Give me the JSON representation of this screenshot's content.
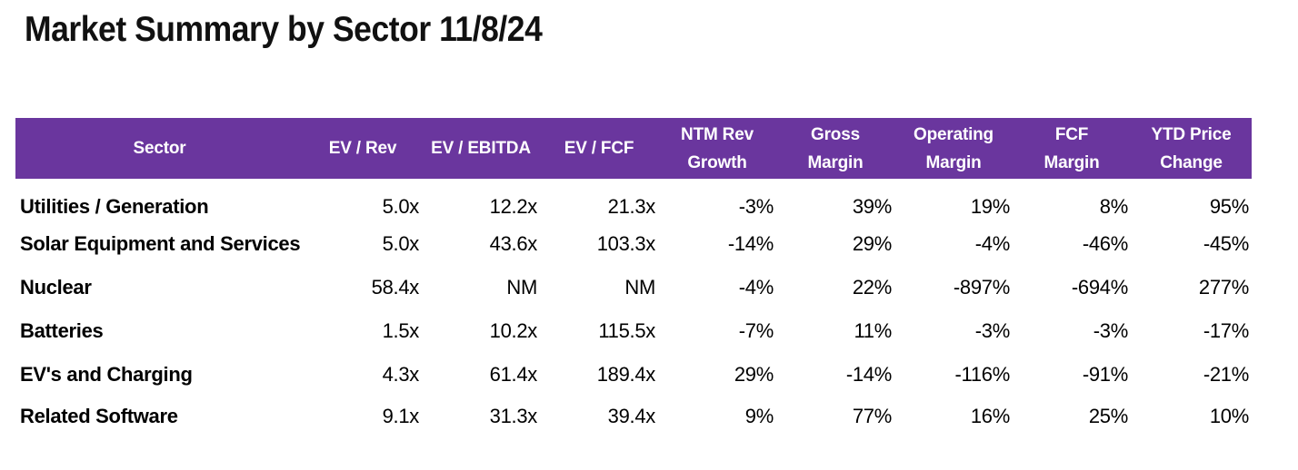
{
  "colors": {
    "header_bg": "#6A369E",
    "header_text": "#FFFFFF",
    "body_text": "#000000"
  },
  "chart_data": {
    "type": "table",
    "title": "Market Summary by Sector 11/8/24",
    "columns": [
      {
        "line1": "Sector",
        "line2": ""
      },
      {
        "line1": "EV / Rev",
        "line2": ""
      },
      {
        "line1": "EV / EBITDA",
        "line2": ""
      },
      {
        "line1": "EV / FCF",
        "line2": ""
      },
      {
        "line1": "NTM Rev",
        "line2": "Growth"
      },
      {
        "line1": "Gross",
        "line2": "Margin"
      },
      {
        "line1": "Operating",
        "line2": "Margin"
      },
      {
        "line1": "FCF",
        "line2": "Margin"
      },
      {
        "line1": "YTD Price",
        "line2": "Change"
      }
    ],
    "rows": [
      {
        "cells": [
          "Utilities / Generation",
          "5.0x",
          "12.2x",
          "21.3x",
          "-3%",
          "39%",
          "19%",
          "8%",
          "95%"
        ]
      },
      {
        "cells": [
          "Solar Equipment and Services",
          "5.0x",
          "43.6x",
          "103.3x",
          "-14%",
          "29%",
          "-4%",
          "-46%",
          "-45%"
        ]
      },
      {
        "cells": [
          "Nuclear",
          "58.4x",
          "NM",
          "NM",
          "-4%",
          "22%",
          "-897%",
          "-694%",
          "277%"
        ]
      },
      {
        "cells": [
          "Batteries",
          "1.5x",
          "10.2x",
          "115.5x",
          "-7%",
          "11%",
          "-3%",
          "-3%",
          "-17%"
        ]
      },
      {
        "cells": [
          "EV's and Charging",
          "4.3x",
          "61.4x",
          "189.4x",
          "29%",
          "-14%",
          "-116%",
          "-91%",
          "-21%"
        ]
      },
      {
        "cells": [
          "Related Software",
          "9.1x",
          "31.3x",
          "39.4x",
          "9%",
          "77%",
          "16%",
          "25%",
          "10%"
        ]
      }
    ]
  }
}
